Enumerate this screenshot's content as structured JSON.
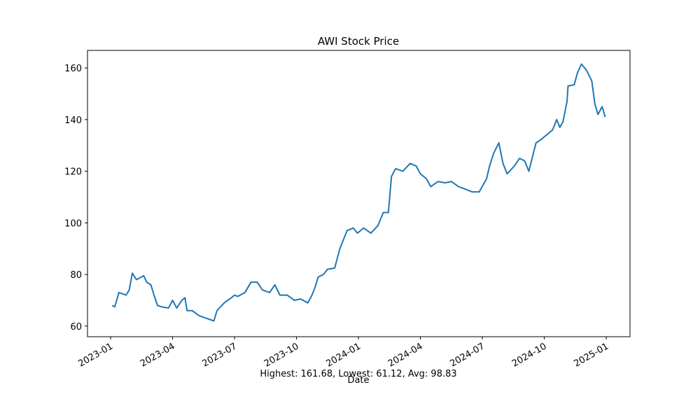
{
  "chart_data": {
    "type": "line",
    "title": "AWI Stock Price",
    "xlabel": "Date",
    "annotation": "Highest: 161.68, Lowest: 61.12, Avg: 98.83",
    "x": [
      0.07,
      0.2,
      0.4,
      0.75,
      0.9,
      1.05,
      1.25,
      1.6,
      1.75,
      1.95,
      2.1,
      2.27,
      2.45,
      2.8,
      3.0,
      3.2,
      3.45,
      3.6,
      3.7,
      3.95,
      4.3,
      4.65,
      5.0,
      5.15,
      5.5,
      5.85,
      6.0,
      6.15,
      6.5,
      6.8,
      7.1,
      7.35,
      7.7,
      7.95,
      8.2,
      8.55,
      8.9,
      9.2,
      9.55,
      9.75,
      9.9,
      10.05,
      10.3,
      10.5,
      10.85,
      11.1,
      11.25,
      11.45,
      11.75,
      11.95,
      12.25,
      12.6,
      12.95,
      13.2,
      13.45,
      13.6,
      13.8,
      14.15,
      14.5,
      14.8,
      15.0,
      15.3,
      15.5,
      15.85,
      16.2,
      16.5,
      16.85,
      17.2,
      17.5,
      17.85,
      18.2,
      18.35,
      18.55,
      18.8,
      19.0,
      19.2,
      19.55,
      19.8,
      20.05,
      20.25,
      20.6,
      20.8,
      21.1,
      21.4,
      21.6,
      21.75,
      21.9,
      22.1,
      22.15,
      22.45,
      22.6,
      22.8,
      23.05,
      23.3,
      23.45,
      23.6,
      23.8,
      23.95
    ],
    "series": [
      {
        "name": "AWI",
        "color": "#1f77b4",
        "values": [
          68,
          67.5,
          73,
          72,
          74,
          80.5,
          78,
          79.5,
          77,
          76,
          72,
          68,
          67.5,
          67,
          70,
          67,
          70,
          71,
          66,
          66,
          64,
          63,
          62,
          66,
          69,
          71,
          72,
          71.5,
          73,
          77,
          77,
          74,
          73,
          76,
          72,
          72,
          70,
          70.5,
          69,
          72,
          75,
          79,
          80,
          82,
          82.5,
          90,
          93,
          97,
          98,
          96,
          98,
          96,
          99,
          104,
          104,
          118,
          121,
          120,
          123,
          122,
          119,
          117,
          114,
          116,
          115.5,
          116,
          114,
          113,
          112,
          112,
          117,
          122,
          127,
          131,
          123,
          119,
          122,
          125,
          124,
          120,
          131,
          132,
          134,
          136,
          140,
          137,
          139,
          147,
          153,
          153.5,
          158,
          161.5,
          159,
          155,
          146,
          142,
          145,
          141
        ]
      }
    ],
    "xlim": [
      -1.12,
      25.15
    ],
    "xticks": [
      {
        "value": 0,
        "label": "2023-01"
      },
      {
        "value": 3,
        "label": "2023-04"
      },
      {
        "value": 6,
        "label": "2023-07"
      },
      {
        "value": 9,
        "label": "2023-10"
      },
      {
        "value": 12,
        "label": "2024-01"
      },
      {
        "value": 15,
        "label": "2024-04"
      },
      {
        "value": 18,
        "label": "2024-07"
      },
      {
        "value": 21,
        "label": "2024-10"
      },
      {
        "value": 24,
        "label": "2025-01"
      }
    ],
    "ylim": [
      55.9,
      166.8
    ],
    "yticks": [
      60,
      80,
      100,
      120,
      140,
      160
    ],
    "grid": false
  }
}
